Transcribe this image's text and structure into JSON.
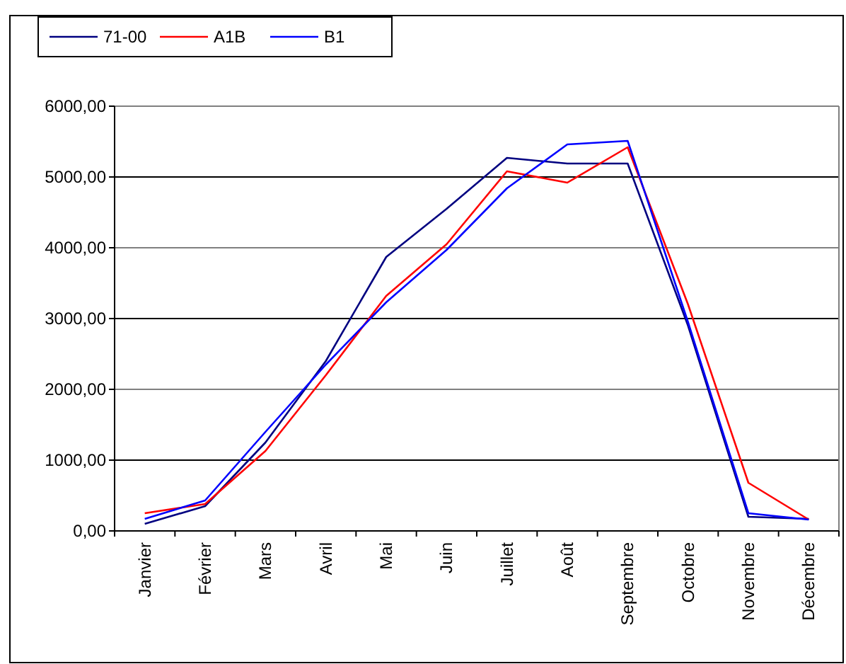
{
  "chart_data": {
    "type": "line",
    "categories": [
      "Janvier",
      "Février",
      "Mars",
      "Avril",
      "Mai",
      "Juin",
      "Juillet",
      "Août",
      "Septembre",
      "Octobre",
      "Novembre",
      "Décembre"
    ],
    "series": [
      {
        "name": "71-00",
        "color": "#000080",
        "values": [
          100,
          350,
          1250,
          2400,
          3870,
          4550,
          5270,
          5190,
          5190,
          2900,
          200,
          170
        ]
      },
      {
        "name": "A1B",
        "color": "#ff0000",
        "values": [
          250,
          380,
          1130,
          2200,
          3320,
          4050,
          5080,
          4920,
          5420,
          3200,
          680,
          160
        ]
      },
      {
        "name": "B1",
        "color": "#0000ff",
        "values": [
          170,
          430,
          1400,
          2350,
          3230,
          3970,
          4840,
          5460,
          5510,
          2950,
          250,
          160
        ]
      }
    ],
    "ylim": [
      0,
      6000
    ],
    "yticks": [
      {
        "value": 0,
        "label": "0,00"
      },
      {
        "value": 1000,
        "label": "1000,00"
      },
      {
        "value": 2000,
        "label": "2000,00"
      },
      {
        "value": 3000,
        "label": "3000,00"
      },
      {
        "value": 4000,
        "label": "4000,00"
      },
      {
        "value": 5000,
        "label": "5000,00"
      },
      {
        "value": 6000,
        "label": "6000,00"
      }
    ],
    "grid": "y",
    "legend": "top left",
    "marker": "none",
    "line_style": "solid"
  }
}
